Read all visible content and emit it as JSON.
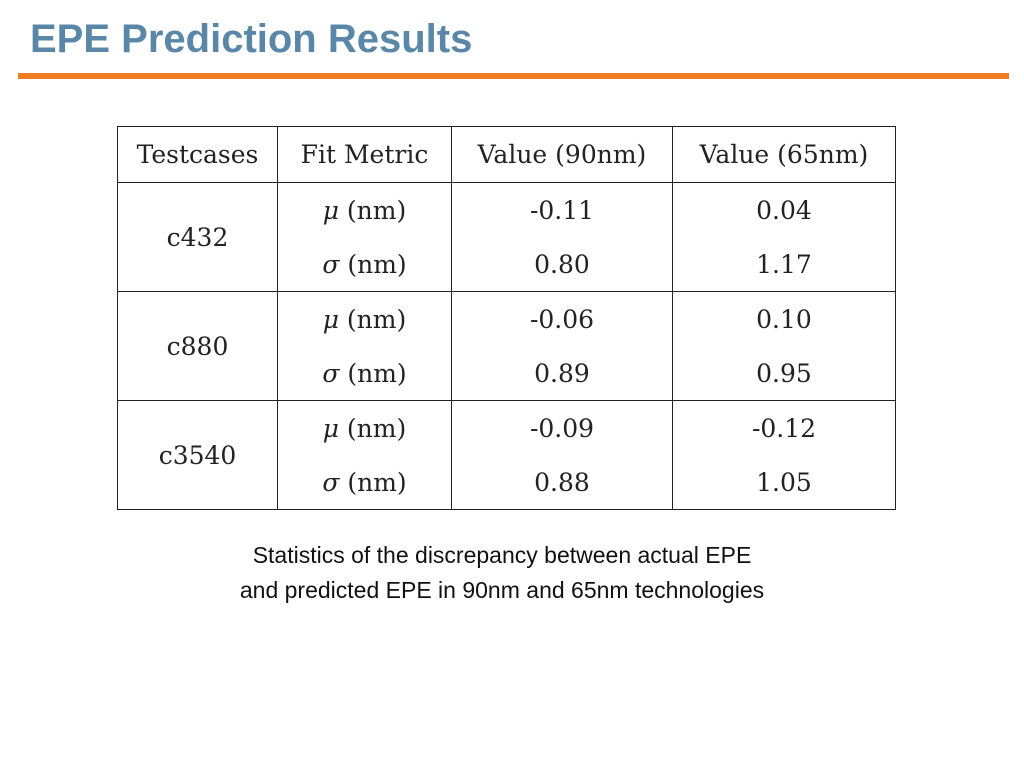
{
  "slide": {
    "title": "EPE Prediction Results",
    "accent_color": "#f07d22",
    "title_color": "#5a87a8"
  },
  "table": {
    "headers": [
      "Testcases",
      "Fit Metric",
      "Value (90nm)",
      "Value (65nm)"
    ],
    "groups": [
      {
        "testcase": "c432",
        "rows": [
          {
            "symbol": "μ",
            "unit": " (nm)",
            "v90": "-0.11",
            "v65": "0.04"
          },
          {
            "symbol": "σ",
            "unit": " (nm)",
            "v90": "0.80",
            "v65": "1.17"
          }
        ]
      },
      {
        "testcase": "c880",
        "rows": [
          {
            "symbol": "μ",
            "unit": " (nm)",
            "v90": "-0.06",
            "v65": "0.10"
          },
          {
            "symbol": "σ",
            "unit": " (nm)",
            "v90": "0.89",
            "v65": "0.95"
          }
        ]
      },
      {
        "testcase": "c3540",
        "rows": [
          {
            "symbol": "μ",
            "unit": " (nm)",
            "v90": "-0.09",
            "v65": "-0.12"
          },
          {
            "symbol": "σ",
            "unit": " (nm)",
            "v90": "0.88",
            "v65": "1.05"
          }
        ]
      }
    ]
  },
  "caption": {
    "line1": "Statistics of the discrepancy between actual EPE",
    "line2": "and predicted EPE in 90nm and 65nm technologies"
  }
}
